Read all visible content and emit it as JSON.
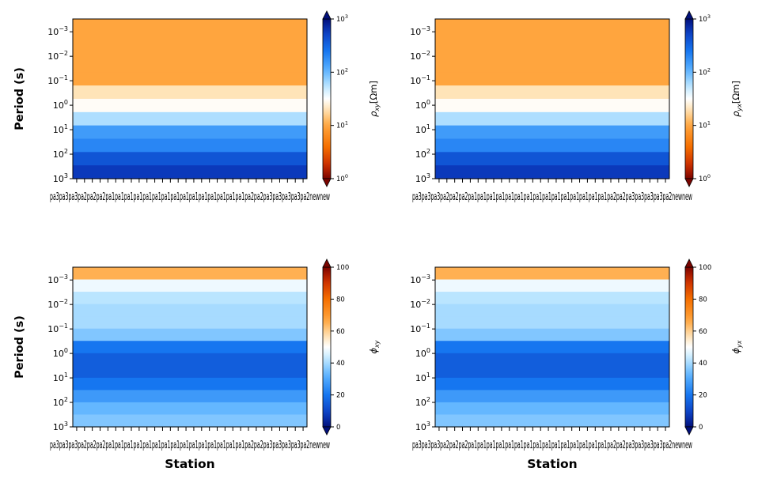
{
  "chart_data": [
    {
      "type": "heatmap",
      "ylabel": "Period (s)",
      "xlabel": "",
      "y_scale": "log",
      "y_inverted": true,
      "ylim": [
        1000,
        0.0003
      ],
      "y_ticks": [
        0.001,
        0.01,
        0.1,
        1,
        10,
        100,
        1000
      ],
      "y_tick_labels": [
        {
          "base": "10",
          "exp": "−3"
        },
        {
          "base": "10",
          "exp": "−2"
        },
        {
          "base": "10",
          "exp": "−1"
        },
        {
          "base": "10",
          "exp": "0"
        },
        {
          "base": "10",
          "exp": "1"
        },
        {
          "base": "10",
          "exp": "2"
        },
        {
          "base": "10",
          "exp": "3"
        }
      ],
      "x_tick_text": "pa3pa3pa3pa2pa2pa2pa1pa1pa1pa1pa1pa1pa1pa1pa1pa1pa1pa1pa1pa1pa1pa2pa2pa3pa3pa3pa3pa2newnew",
      "x_tick_count": 30,
      "colorbar": {
        "label": "ρxy[Ωm]",
        "label_main": "ρ",
        "label_sub": "xy",
        "label_unit": "[Ωm]",
        "scale": "log",
        "range": [
          1,
          1000
        ],
        "ticks": [
          {
            "base": "10",
            "exp": "0"
          },
          {
            "base": "10",
            "exp": "1"
          },
          {
            "base": "10",
            "exp": "2"
          },
          {
            "base": "10",
            "exp": "3"
          }
        ],
        "colormap": "orange-white-blue"
      },
      "bands_color_value": [
        10,
        10,
        10,
        10,
        10,
        20,
        30,
        60,
        150,
        200,
        400,
        600
      ]
    },
    {
      "type": "heatmap",
      "ylabel": "",
      "xlabel": "",
      "y_scale": "log",
      "y_inverted": true,
      "ylim": [
        1000,
        0.0003
      ],
      "y_ticks": [
        0.001,
        0.01,
        0.1,
        1,
        10,
        100,
        1000
      ],
      "y_tick_labels": [
        {
          "base": "10",
          "exp": "−3"
        },
        {
          "base": "10",
          "exp": "−2"
        },
        {
          "base": "10",
          "exp": "−1"
        },
        {
          "base": "10",
          "exp": "0"
        },
        {
          "base": "10",
          "exp": "1"
        },
        {
          "base": "10",
          "exp": "2"
        },
        {
          "base": "10",
          "exp": "3"
        }
      ],
      "x_tick_text": "pa3pa3pa3pa2pa2pa2pa1pa1pa1pa1pa1pa1pa1pa1pa1pa1pa1pa1pa1pa1pa1pa2pa2pa3pa3pa3pa3pa2newnew",
      "x_tick_count": 30,
      "colorbar": {
        "label": "ρyx[Ωm]",
        "label_main": "ρ",
        "label_sub": "yx",
        "label_unit": "[Ωm]",
        "scale": "log",
        "range": [
          1,
          1000
        ],
        "ticks": [
          {
            "base": "10",
            "exp": "0"
          },
          {
            "base": "10",
            "exp": "1"
          },
          {
            "base": "10",
            "exp": "2"
          },
          {
            "base": "10",
            "exp": "3"
          }
        ],
        "colormap": "orange-white-blue"
      },
      "bands_color_value": [
        10,
        10,
        10,
        10,
        10,
        20,
        30,
        60,
        150,
        200,
        400,
        600
      ]
    },
    {
      "type": "heatmap",
      "ylabel": "Period (s)",
      "xlabel": "Station",
      "y_scale": "log",
      "y_inverted": true,
      "ylim": [
        1000,
        0.0003
      ],
      "y_ticks": [
        0.001,
        0.01,
        0.1,
        1,
        10,
        100,
        1000
      ],
      "y_tick_labels": [
        {
          "base": "10",
          "exp": "−3"
        },
        {
          "base": "10",
          "exp": "−2"
        },
        {
          "base": "10",
          "exp": "−1"
        },
        {
          "base": "10",
          "exp": "0"
        },
        {
          "base": "10",
          "exp": "1"
        },
        {
          "base": "10",
          "exp": "2"
        },
        {
          "base": "10",
          "exp": "3"
        }
      ],
      "x_tick_text": "pa3pa3pa3pa2pa2pa2pa1pa1pa1pa1pa1pa1pa1pa1pa1pa1pa1pa1pa1pa1pa1pa2pa2pa3pa3pa3pa3pa2newnew",
      "x_tick_count": 30,
      "colorbar": {
        "label": "ϕxy",
        "label_main": "ϕ",
        "label_sub": "xy",
        "label_unit": "",
        "scale": "linear",
        "range": [
          0,
          100
        ],
        "ticks": [
          {
            "base": "0",
            "exp": ""
          },
          {
            "base": "20",
            "exp": ""
          },
          {
            "base": "40",
            "exp": ""
          },
          {
            "base": "60",
            "exp": ""
          },
          {
            "base": "80",
            "exp": ""
          },
          {
            "base": "100",
            "exp": ""
          }
        ],
        "colormap": "blue-white-orange"
      },
      "bands_color_value": [
        65,
        48,
        42,
        40,
        40,
        36,
        20,
        15,
        15,
        20,
        27,
        33,
        36
      ]
    },
    {
      "type": "heatmap",
      "ylabel": "",
      "xlabel": "Station",
      "y_scale": "log",
      "y_inverted": true,
      "ylim": [
        1000,
        0.0003
      ],
      "y_ticks": [
        0.001,
        0.01,
        0.1,
        1,
        10,
        100,
        1000
      ],
      "y_tick_labels": [
        {
          "base": "10",
          "exp": "−3"
        },
        {
          "base": "10",
          "exp": "−2"
        },
        {
          "base": "10",
          "exp": "−1"
        },
        {
          "base": "10",
          "exp": "0"
        },
        {
          "base": "10",
          "exp": "1"
        },
        {
          "base": "10",
          "exp": "2"
        },
        {
          "base": "10",
          "exp": "3"
        }
      ],
      "x_tick_text": "pa3pa3pa3pa2pa2pa2pa1pa1pa1pa1pa1pa1pa1pa1pa1pa1pa1pa1pa1pa1pa1pa2pa2pa3pa3pa3pa3pa2newnew",
      "x_tick_count": 30,
      "colorbar": {
        "label": "ϕyx",
        "label_main": "ϕ",
        "label_sub": "yx",
        "label_unit": "",
        "scale": "linear",
        "range": [
          0,
          100
        ],
        "ticks": [
          {
            "base": "0",
            "exp": ""
          },
          {
            "base": "20",
            "exp": ""
          },
          {
            "base": "40",
            "exp": ""
          },
          {
            "base": "60",
            "exp": ""
          },
          {
            "base": "80",
            "exp": ""
          },
          {
            "base": "100",
            "exp": ""
          }
        ],
        "colormap": "blue-white-orange"
      },
      "bands_color_value": [
        65,
        48,
        42,
        40,
        40,
        36,
        20,
        15,
        15,
        20,
        27,
        33,
        36
      ]
    }
  ]
}
